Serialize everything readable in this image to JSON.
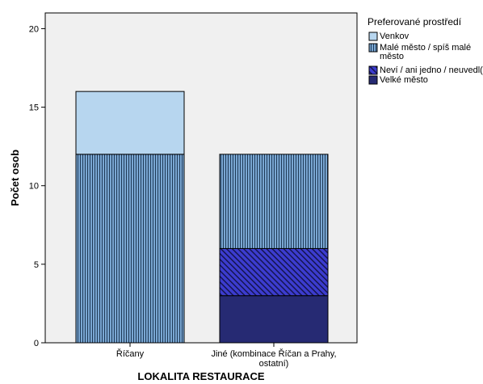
{
  "chart_data": {
    "type": "bar",
    "stacked": true,
    "categories": [
      "Říčany",
      "Jiné (kombinace Říčan a Prahy, ostatní)"
    ],
    "series": [
      {
        "name": "Velké město",
        "values": [
          0,
          3
        ],
        "color": "#262a73",
        "pattern": "solid"
      },
      {
        "name": "Neví / ani jedno / neuvedl(a)",
        "values": [
          0,
          3
        ],
        "color": "#3c3ccf",
        "pattern": "diagonal"
      },
      {
        "name": "Malé město / spíš malé město",
        "values": [
          12,
          6
        ],
        "color": "#7aa7d3",
        "pattern": "vertical"
      },
      {
        "name": "Venkov",
        "values": [
          4,
          0
        ],
        "color": "#b7d6ef",
        "pattern": "solid"
      }
    ],
    "legend_order": [
      "Venkov",
      "Malé město / spíš malé město",
      "Neví / ani jedno / neuvedl(a)",
      "Velké město"
    ],
    "legend_title": "Preferované prostředí",
    "legend_position": "right",
    "xlabel": "LOKALITA RESTAURACE",
    "ylabel": "Počet osob",
    "ylim": [
      0,
      21
    ],
    "yticks": [
      0,
      5,
      10,
      15,
      20
    ],
    "plot_background": "#f0f0f0",
    "grid": false
  }
}
